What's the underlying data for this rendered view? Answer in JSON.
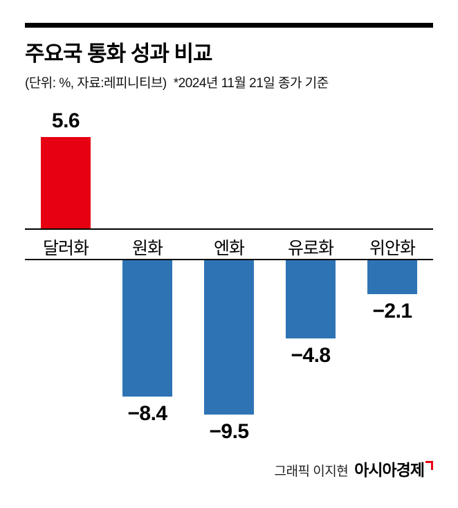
{
  "header": {
    "title": "주요국 통화 성과 비교",
    "unit_source": "(단위: %, 자료:레피니티브)",
    "date_note": "*2024년 11월 21일 종가 기준"
  },
  "chart_data": {
    "type": "bar",
    "title": "주요국 통화 성과 비교",
    "unit": "%",
    "source": "레피니티브",
    "categories": [
      "달러화",
      "원화",
      "엔화",
      "유로화",
      "위안화"
    ],
    "values": [
      5.6,
      -8.4,
      -9.5,
      -4.8,
      -2.1
    ],
    "labels": [
      "5.6",
      "−8.4",
      "−9.5",
      "−4.8",
      "−2.1"
    ],
    "positive_color": "#e60012",
    "negative_color": "#2e74b5",
    "axis_color": "#000000",
    "ylim": [
      -10,
      6
    ],
    "grid": false,
    "legend": false
  },
  "footer": {
    "credit": "그래픽 이지현",
    "brand": "아시아경제"
  }
}
